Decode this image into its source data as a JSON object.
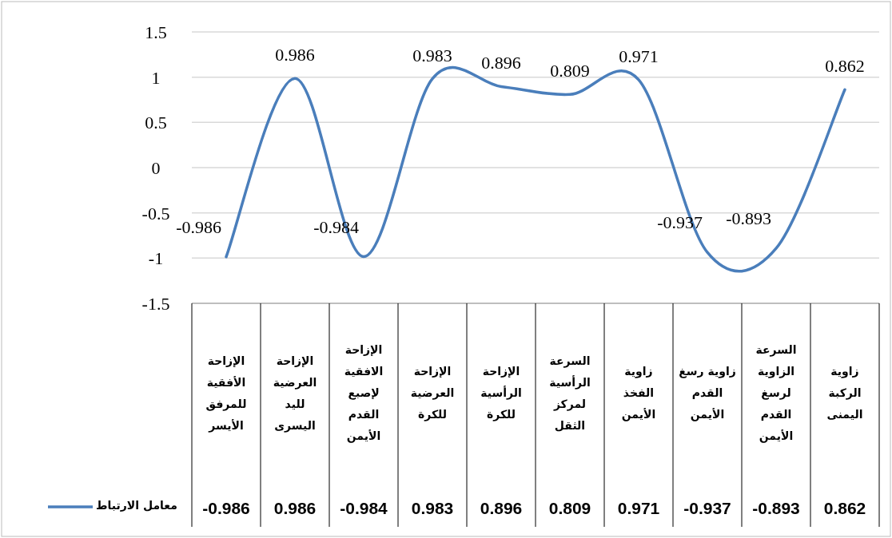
{
  "chart_data": {
    "type": "line",
    "categories": [
      "الإزاحة الأفقية للمرفق الأيسر",
      "الإزاحة العرضية لليد اليسرى",
      "الإزاحة الافقية لإصبع القدم الأيمن",
      "الإزاحة العرضية للكرة",
      "الإزاحة الرأسية للكرة",
      "السرعة الرأسية لمركز الثقل",
      "زاوية الفخذ الأيمن",
      "زاوية رسغ القدم الأيمن",
      "السرعة الزاوية لرسغ القدم الأيمن",
      "زاوية الركبة اليمنى"
    ],
    "series": [
      {
        "name": "معامل الارتباط",
        "color": "#4a7ebb",
        "values": [
          -0.986,
          0.986,
          -0.984,
          0.983,
          0.896,
          0.809,
          0.971,
          -0.937,
          -0.893,
          0.862
        ],
        "value_labels": [
          "-0.986",
          "0.986",
          "-0.984",
          "0.983",
          "0.896",
          "0.809",
          "0.971",
          "-0.937",
          "-0.893",
          "0.862"
        ]
      }
    ],
    "ylim": [
      -1.5,
      1.5
    ],
    "yticks": [
      -1.5,
      -1,
      -0.5,
      0,
      0.5,
      1,
      1.5
    ],
    "grid": "y",
    "legend": "left",
    "annotations": [
      "-0.986",
      "0.986",
      "-0.984",
      "0.983",
      "0.896",
      "0.809",
      "0.971",
      "-0.937",
      "-0.893",
      "0.862"
    ]
  }
}
